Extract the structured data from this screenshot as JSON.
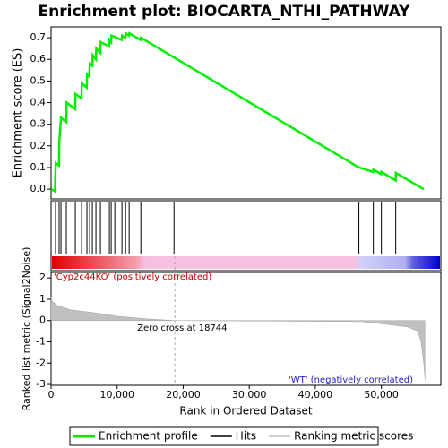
{
  "title": "Enrichment plot: BIOCARTA_NTHI_PATHWAY",
  "chart_data": [
    {
      "type": "line",
      "y_label": "Enrichment score (ES)",
      "xlim": [
        0,
        59000
      ],
      "ylim": [
        -0.045,
        0.75
      ],
      "yticks": [
        {
          "value": 0,
          "label": "0.0"
        },
        0.1,
        0.2,
        0.3,
        0.4,
        0.5,
        0.6,
        0.7
      ],
      "series": [
        {
          "name": "Enrichment profile",
          "color": "#00ee00",
          "x": [
            0,
            600,
            700,
            1200,
            1250,
            1500,
            2300,
            2350,
            3650,
            3700,
            4600,
            4650,
            5400,
            5450,
            5800,
            5850,
            6250,
            6300,
            6800,
            6850,
            7450,
            7500,
            8800,
            8850,
            9100,
            9150,
            10700,
            10750,
            11250,
            11300,
            11800,
            11850,
            13550,
            13600,
            46600,
            46650,
            48750,
            48800,
            49950,
            50000,
            52150,
            52200,
            56400
          ],
          "values": [
            0,
            -0.01,
            0.12,
            0.11,
            0.22,
            0.33,
            0.31,
            0.4,
            0.37,
            0.44,
            0.42,
            0.49,
            0.47,
            0.53,
            0.52,
            0.58,
            0.57,
            0.62,
            0.6,
            0.65,
            0.63,
            0.68,
            0.66,
            0.69,
            0.68,
            0.71,
            0.69,
            0.71,
            0.7,
            0.72,
            0.71,
            0.72,
            0.69,
            0.7,
            0.1,
            0.1,
            0.08,
            0.09,
            0.07,
            0.08,
            0.04,
            0.075,
            0
          ]
        }
      ]
    },
    {
      "type": "hits",
      "xlim": [
        0,
        59000
      ],
      "series": [
        {
          "name": "Hits",
          "color": "#000000",
          "x": [
            680,
            1220,
            1500,
            2310,
            3670,
            4620,
            5430,
            5840,
            6250,
            6790,
            7470,
            8830,
            9100,
            9650,
            10730,
            11280,
            11820,
            13590,
            18610,
            46600,
            48780,
            50000,
            52170
          ]
        }
      ]
    },
    {
      "type": "area",
      "x_label": "Rank in Ordered Dataset",
      "y_label": "Ranked list metric (Signal2Noise)",
      "xlim": [
        0,
        59000
      ],
      "ylim": [
        -3.04,
        2.26
      ],
      "xticks": [
        0,
        {
          "value": 10000,
          "label": "10,000"
        },
        {
          "value": 20000,
          "label": "20,000"
        },
        {
          "value": 30000,
          "label": "30,000"
        },
        {
          "value": 40000,
          "label": "40,000"
        },
        {
          "value": 50000,
          "label": "50,000"
        }
      ],
      "yticks": [
        2,
        1,
        0,
        -1,
        -2,
        -3
      ],
      "zero_cross": 18744,
      "annotations": [
        "'Cyp2c44KO' (positively correlated)",
        "Zero cross at 18744",
        "'WT' (negatively correlated)"
      ],
      "series": [
        {
          "name": "Ranking metric scores",
          "color": "#c0c0c0",
          "x": [
            0,
            200,
            1000,
            3000,
            7000,
            10000,
            15000,
            18744,
            47000,
            50000,
            54000,
            55500,
            56000,
            56400,
            56600
          ],
          "values": [
            1.1,
            0.9,
            0.7,
            0.5,
            0.35,
            0.2,
            0.07,
            0,
            -0.05,
            -0.15,
            -0.3,
            -0.5,
            -1,
            -2,
            -2.8
          ]
        }
      ]
    }
  ]
}
